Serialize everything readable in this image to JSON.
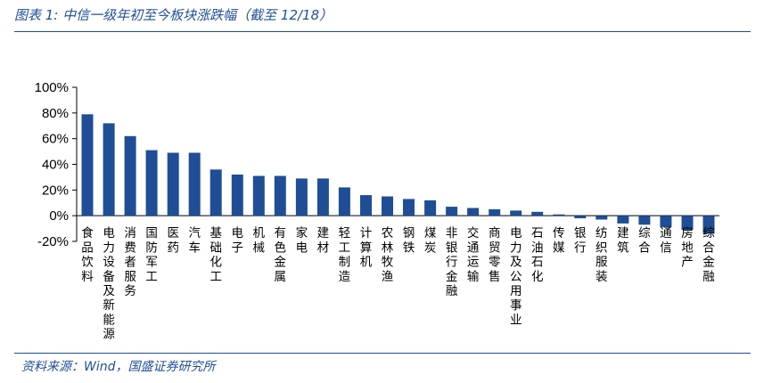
{
  "figure": {
    "title": "图表 1:  中信一级年初至今板块涨跌幅（截至 12/18）",
    "source": "资料来源：Wind，国盛证券研究所"
  },
  "colors": {
    "bar": "#1f4e97",
    "accent": "#1f4e97",
    "axis": "#000000"
  },
  "chart_data": {
    "type": "bar",
    "categories": [
      "食品饮料",
      "电力设备及新能源",
      "消费者服务",
      "国防军工",
      "医药",
      "汽车",
      "基础化工",
      "电子",
      "机械",
      "有色金属",
      "家电",
      "建材",
      "轻工制造",
      "计算机",
      "农林牧渔",
      "钢铁",
      "煤炭",
      "非银行金融",
      "交通运输",
      "商贸零售",
      "电力及公用事业",
      "石油石化",
      "传媒",
      "银行",
      "纺织服装",
      "建筑",
      "综合",
      "通信",
      "房地产",
      "综合金融"
    ],
    "values": [
      79,
      72,
      62,
      51,
      49,
      49,
      36,
      32,
      31,
      31,
      29,
      29,
      22,
      16,
      15,
      13,
      12,
      7,
      6,
      5,
      4,
      3,
      1,
      -2,
      -3,
      -6,
      -7,
      -9,
      -11,
      -14
    ],
    "ylim": [
      -20,
      100
    ],
    "yticks": [
      -20,
      0,
      20,
      40,
      60,
      80,
      100
    ],
    "ytick_labels": [
      "-20%",
      "0%",
      "20%",
      "40%",
      "60%",
      "80%",
      "100%"
    ],
    "xlabel": "",
    "ylabel": "",
    "legend": "none",
    "grid": false
  }
}
